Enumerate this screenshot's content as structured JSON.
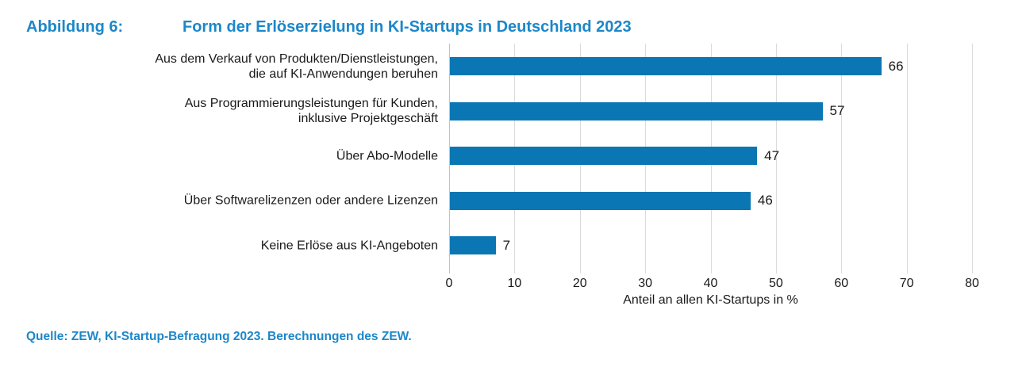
{
  "figure": {
    "label": "Abbildung 6:",
    "title": "Form der Erlöserzielung in KI-Startups in Deutschland 2023",
    "source": "Quelle: ZEW, KI-Startup-Befragung 2023. Berechnungen des ZEW."
  },
  "chart_data": {
    "type": "bar",
    "orientation": "horizontal",
    "title": "Form der Erlöserzielung in KI-Startups in Deutschland 2023",
    "categories": [
      "Aus dem Verkauf von Produkten/Dienstleistungen,\ndie auf KI-Anwendungen beruhen",
      "Aus Programmierungsleistungen für Kunden,\ninklusive Projektgeschäft",
      "Über Abo-Modelle",
      "Über Softwarelizenzen oder andere Lizenzen",
      "Keine Erlöse aus KI-Angeboten"
    ],
    "values": [
      66,
      57,
      47,
      46,
      7
    ],
    "xlabel": "Anteil an allen KI-Startups in %",
    "ylabel": "",
    "xlim": [
      0,
      80
    ],
    "xticks": [
      0,
      10,
      20,
      30,
      40,
      50,
      60,
      70,
      80
    ],
    "grid": true,
    "legend": "none",
    "colors": {
      "bar": "#0b76b4",
      "title_text": "#1c87c9",
      "source_text": "#1c87c9",
      "gridline": "#dbdbdb",
      "axis_line": "#c2c2c2",
      "label_text": "#1a1a1a"
    }
  }
}
